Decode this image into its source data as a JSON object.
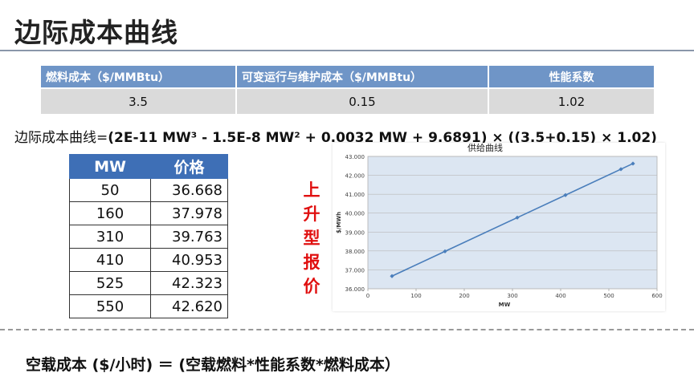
{
  "title": "边际成本曲线",
  "param_table": {
    "headers": [
      "燃料成本（$/MMBtu）",
      "可变运行与维护成本（$/MMBtu）",
      "性能系数"
    ],
    "values": [
      "3.5",
      "0.15",
      "1.02"
    ]
  },
  "formula": {
    "label": "边际成本曲线=",
    "expression": "(2E-11 MW³ - 1.5E-8 MW² + 0.0032 MW + 9.6891) × ((3.5+0.15) × 1.02)"
  },
  "price_table": {
    "headers": [
      "MW",
      "价格"
    ],
    "rows": [
      [
        "50",
        "36.668"
      ],
      [
        "160",
        "37.978"
      ],
      [
        "310",
        "39.763"
      ],
      [
        "410",
        "40.953"
      ],
      [
        "525",
        "42.323"
      ],
      [
        "550",
        "42.620"
      ]
    ]
  },
  "side_label": [
    "上",
    "升",
    "型",
    "报",
    "价"
  ],
  "chart_data": {
    "type": "line",
    "title": "供给曲线",
    "xlabel": "MW",
    "ylabel": "$/MWh",
    "x": [
      50,
      160,
      310,
      410,
      525,
      550
    ],
    "series": [
      {
        "values": [
          36.668,
          37.978,
          39.763,
          40.953,
          42.323,
          42.62
        ]
      }
    ],
    "xlim": [
      0,
      600
    ],
    "ylim": [
      36,
      43
    ],
    "xticks": [
      "0",
      "100",
      "200",
      "300",
      "400",
      "500",
      "600"
    ],
    "yticks": [
      "36.000",
      "37.000",
      "38.000",
      "39.000",
      "40.000",
      "41.000",
      "42.000",
      "43.000"
    ],
    "grid": true,
    "line_color": "#4a7ebb"
  },
  "bottom_text": "空载成本 ($/小时)  ＝ (空载燃料*性能系数*燃料成本）"
}
